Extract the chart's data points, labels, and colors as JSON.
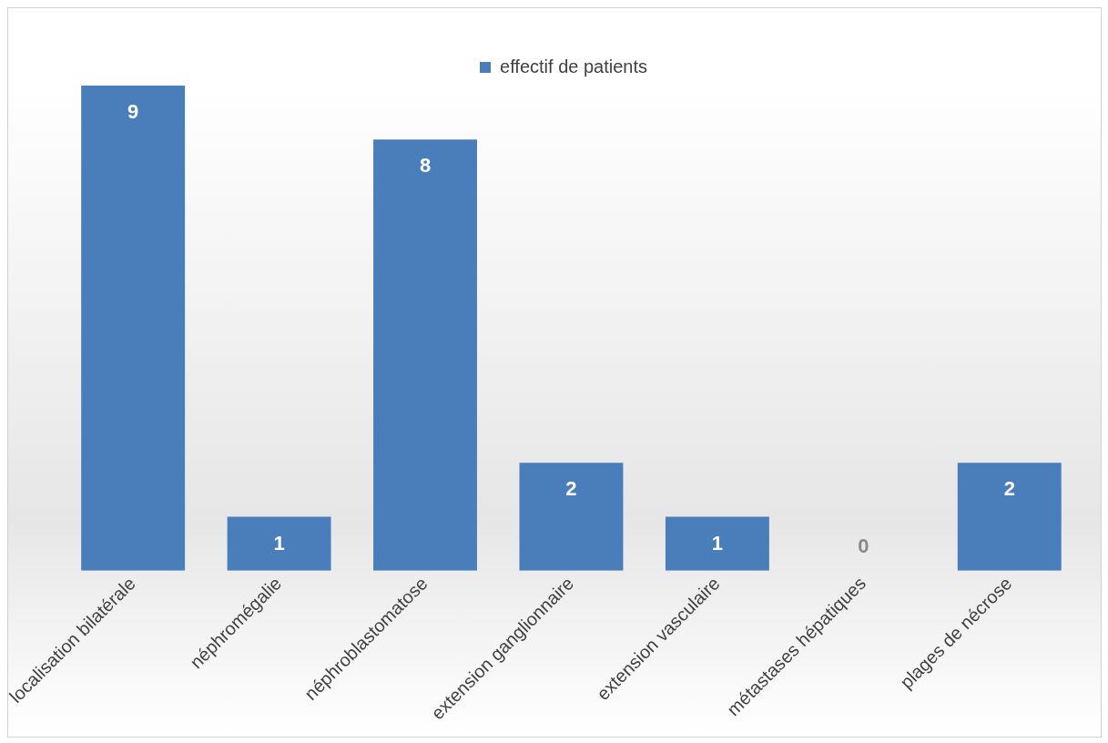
{
  "chart_data": {
    "type": "bar",
    "categories": [
      "localisation bilatérale",
      "néphromégalie",
      "néphroblastomatose",
      "extension ganglionnaire",
      "extension vasculaire",
      "métastases hépatiques",
      "plages de nécrose"
    ],
    "series": [
      {
        "name": "effectif de patients",
        "color": "#4a7ebb",
        "values": [
          9,
          1,
          8,
          2,
          1,
          0,
          2
        ]
      }
    ],
    "data_labels": true,
    "legend": "top",
    "grid": false,
    "tick_labels": "x"
  }
}
